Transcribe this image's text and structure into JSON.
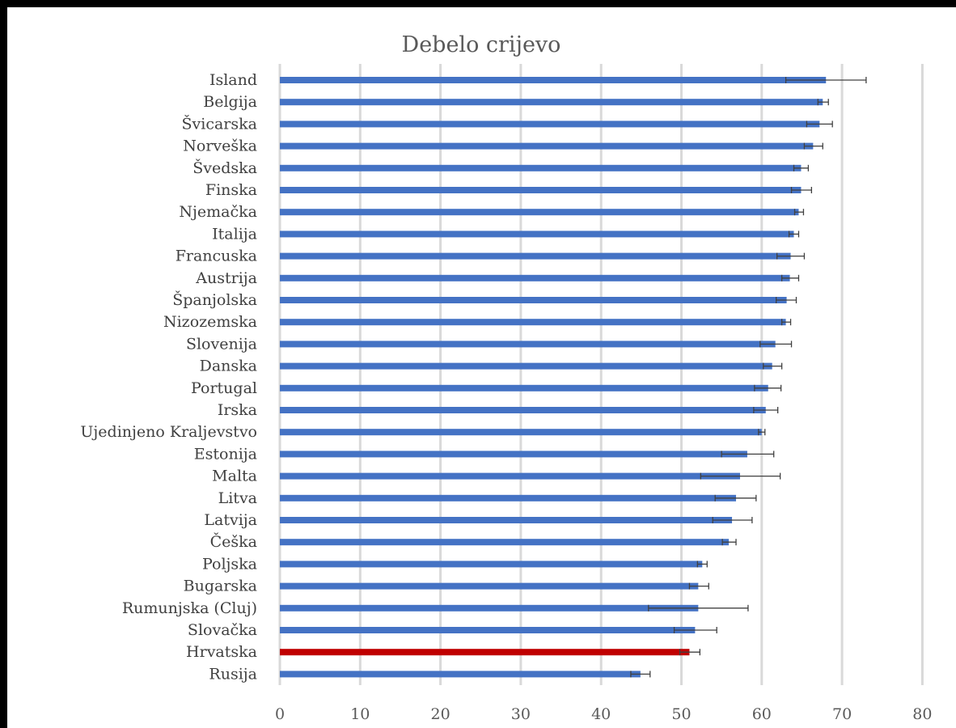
{
  "chart_data": {
    "type": "bar",
    "orientation": "horizontal",
    "title": "Debelo crijevo",
    "xlim": [
      0,
      80
    ],
    "x_ticks": [
      0,
      10,
      20,
      30,
      40,
      50,
      60,
      70,
      80
    ],
    "grid": true,
    "colors": {
      "default": "#4472C4",
      "highlight": "#C00000",
      "error_bar": "#404040",
      "grid": "#D9D9D9"
    },
    "categories": [
      "Island",
      "Belgija",
      "Švicarska",
      "Norveška",
      "Švedska",
      "Finska",
      "Njemačka",
      "Italija",
      "Francuska",
      "Austrija",
      "Španjolska",
      "Nizozemska",
      "Slovenija",
      "Danska",
      "Portugal",
      "Irska",
      "Ujedinjeno Kraljevstvo",
      "Estonija",
      "Malta",
      "Litva",
      "Latvija",
      "Češka",
      "Poljska",
      "Bugarska",
      "Rumunjska (Cluj)",
      "Slovačka",
      "Hrvatska",
      "Rusija"
    ],
    "values": [
      68.0,
      67.6,
      67.2,
      66.4,
      64.9,
      64.9,
      64.6,
      64.0,
      63.6,
      63.5,
      63.1,
      63.0,
      61.7,
      61.3,
      60.8,
      60.5,
      60.0,
      58.2,
      57.3,
      56.8,
      56.3,
      55.9,
      52.6,
      52.1,
      52.1,
      51.7,
      51.0,
      44.9
    ],
    "error_low": [
      63.0,
      67.0,
      65.6,
      65.3,
      64.0,
      63.7,
      64.1,
      63.4,
      61.9,
      62.5,
      61.8,
      62.5,
      59.8,
      60.2,
      59.1,
      59.0,
      59.6,
      55.0,
      52.4,
      54.2,
      53.9,
      55.1,
      52.0,
      51.0,
      45.9,
      49.1,
      49.8,
      43.7
    ],
    "error_high": [
      73.0,
      68.3,
      68.8,
      67.6,
      65.8,
      66.2,
      65.2,
      64.6,
      65.3,
      64.6,
      64.3,
      63.6,
      63.7,
      62.5,
      62.4,
      62.0,
      60.4,
      61.5,
      62.3,
      59.3,
      58.8,
      56.8,
      53.2,
      53.4,
      58.3,
      54.4,
      52.3,
      46.1
    ],
    "highlight_category": "Hrvatska"
  }
}
